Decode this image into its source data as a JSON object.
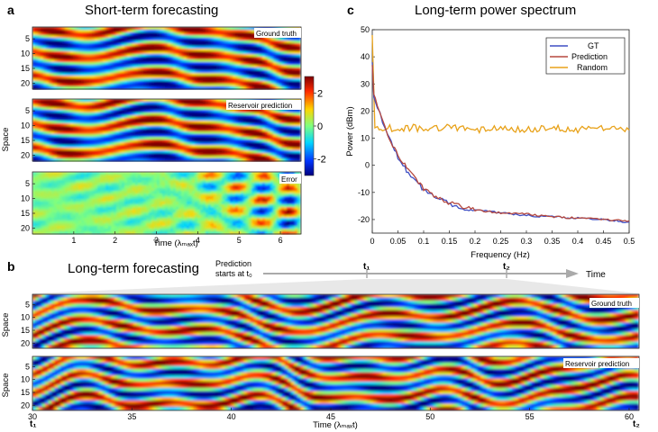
{
  "panels": {
    "a": {
      "letter": "a",
      "title": "Short-term forecasting"
    },
    "b": {
      "letter": "b",
      "title": "Long-term forecasting"
    },
    "c": {
      "letter": "c",
      "title": "Long-term power spectrum"
    }
  },
  "heatmap_labels": {
    "ground_truth": "Ground truth",
    "reservoir_prediction": "Reservoir prediction",
    "error": "Error"
  },
  "timeline": {
    "prediction_line1": "Prediction",
    "prediction_line2": "starts at t₀",
    "t1": "t₁",
    "t2": "t₂",
    "time_label": "Time"
  },
  "colorbar": {
    "ticks": [
      2,
      0,
      -2
    ],
    "colors": [
      "#7f0000",
      "#ff2a00",
      "#ffd400",
      "#7fff7f",
      "#00d4ff",
      "#0036ff",
      "#00007f"
    ]
  },
  "chart_data": [
    {
      "type": "heatmap",
      "panel": "a",
      "ylabel": "Space",
      "xlabel": "Time (λₘₐₓt)",
      "x_ticks": [
        1,
        2,
        3,
        4,
        5,
        6
      ],
      "xlim": [
        0,
        6.5
      ],
      "y_ticks": [
        5,
        10,
        15,
        20
      ],
      "ylim": [
        1,
        22
      ],
      "subplots": [
        "Ground truth",
        "Reservoir prediction",
        "Error"
      ],
      "value_range": [
        -3,
        3
      ]
    },
    {
      "type": "line",
      "panel": "c",
      "xlabel": "Frequency (Hz)",
      "ylabel": "Power (dBm)",
      "xlim": [
        0,
        0.5
      ],
      "ylim": [
        -25,
        50
      ],
      "x_ticks": [
        0,
        0.05,
        0.1,
        0.15,
        0.2,
        0.25,
        0.3,
        0.35,
        0.4,
        0.45,
        0.5
      ],
      "y_ticks": [
        -20,
        -10,
        0,
        10,
        20,
        30,
        40,
        50
      ],
      "legend_position": "top-right",
      "series": [
        {
          "name": "GT",
          "color": "#3f4fc4",
          "x": [
            0,
            0.003,
            0.006,
            0.01,
            0.015,
            0.02,
            0.025,
            0.03,
            0.04,
            0.05,
            0.06,
            0.07,
            0.08,
            0.09,
            0.1,
            0.12,
            0.14,
            0.16,
            0.18,
            0.2,
            0.25,
            0.3,
            0.35,
            0.4,
            0.45,
            0.5
          ],
          "y": [
            38,
            26,
            24,
            21,
            19,
            16,
            13,
            11,
            7,
            3,
            0,
            -3,
            -5,
            -7,
            -9,
            -11,
            -13,
            -15,
            -16,
            -16.5,
            -17.5,
            -18.5,
            -19,
            -19.5,
            -20,
            -21
          ]
        },
        {
          "name": "Prediction",
          "color": "#b5493f",
          "x": [
            0,
            0.003,
            0.006,
            0.01,
            0.015,
            0.02,
            0.025,
            0.03,
            0.04,
            0.05,
            0.06,
            0.07,
            0.08,
            0.09,
            0.1,
            0.12,
            0.14,
            0.16,
            0.18,
            0.2,
            0.25,
            0.3,
            0.35,
            0.4,
            0.45,
            0.5
          ],
          "y": [
            37,
            27,
            25,
            22,
            19,
            17,
            14,
            11,
            7,
            4,
            1,
            -2,
            -4,
            -6.5,
            -8.5,
            -11,
            -13,
            -14.5,
            -15.5,
            -16.5,
            -17.5,
            -18,
            -19,
            -19.5,
            -20,
            -20.5
          ]
        },
        {
          "name": "Random",
          "color": "#e8a21a",
          "x": [
            0,
            0.005,
            0.01,
            0.02,
            0.03,
            0.05,
            0.08,
            0.1,
            0.15,
            0.2,
            0.25,
            0.3,
            0.35,
            0.4,
            0.45,
            0.5
          ],
          "y": [
            48,
            15,
            14,
            13,
            14,
            13,
            14,
            13,
            14,
            13,
            14,
            13,
            14,
            13,
            14,
            13
          ]
        }
      ]
    },
    {
      "type": "heatmap",
      "panel": "b",
      "ylabel": "Space",
      "xlabel": "Time (λₘₐₓt)",
      "x_ticks": [
        30,
        35,
        40,
        45,
        50,
        55,
        60
      ],
      "xlim": [
        30,
        60.5
      ],
      "y_ticks": [
        5,
        10,
        15,
        20
      ],
      "ylim": [
        1,
        22
      ],
      "subplots": [
        "Ground truth",
        "Reservoir prediction"
      ],
      "value_range": [
        -3,
        3
      ]
    }
  ]
}
